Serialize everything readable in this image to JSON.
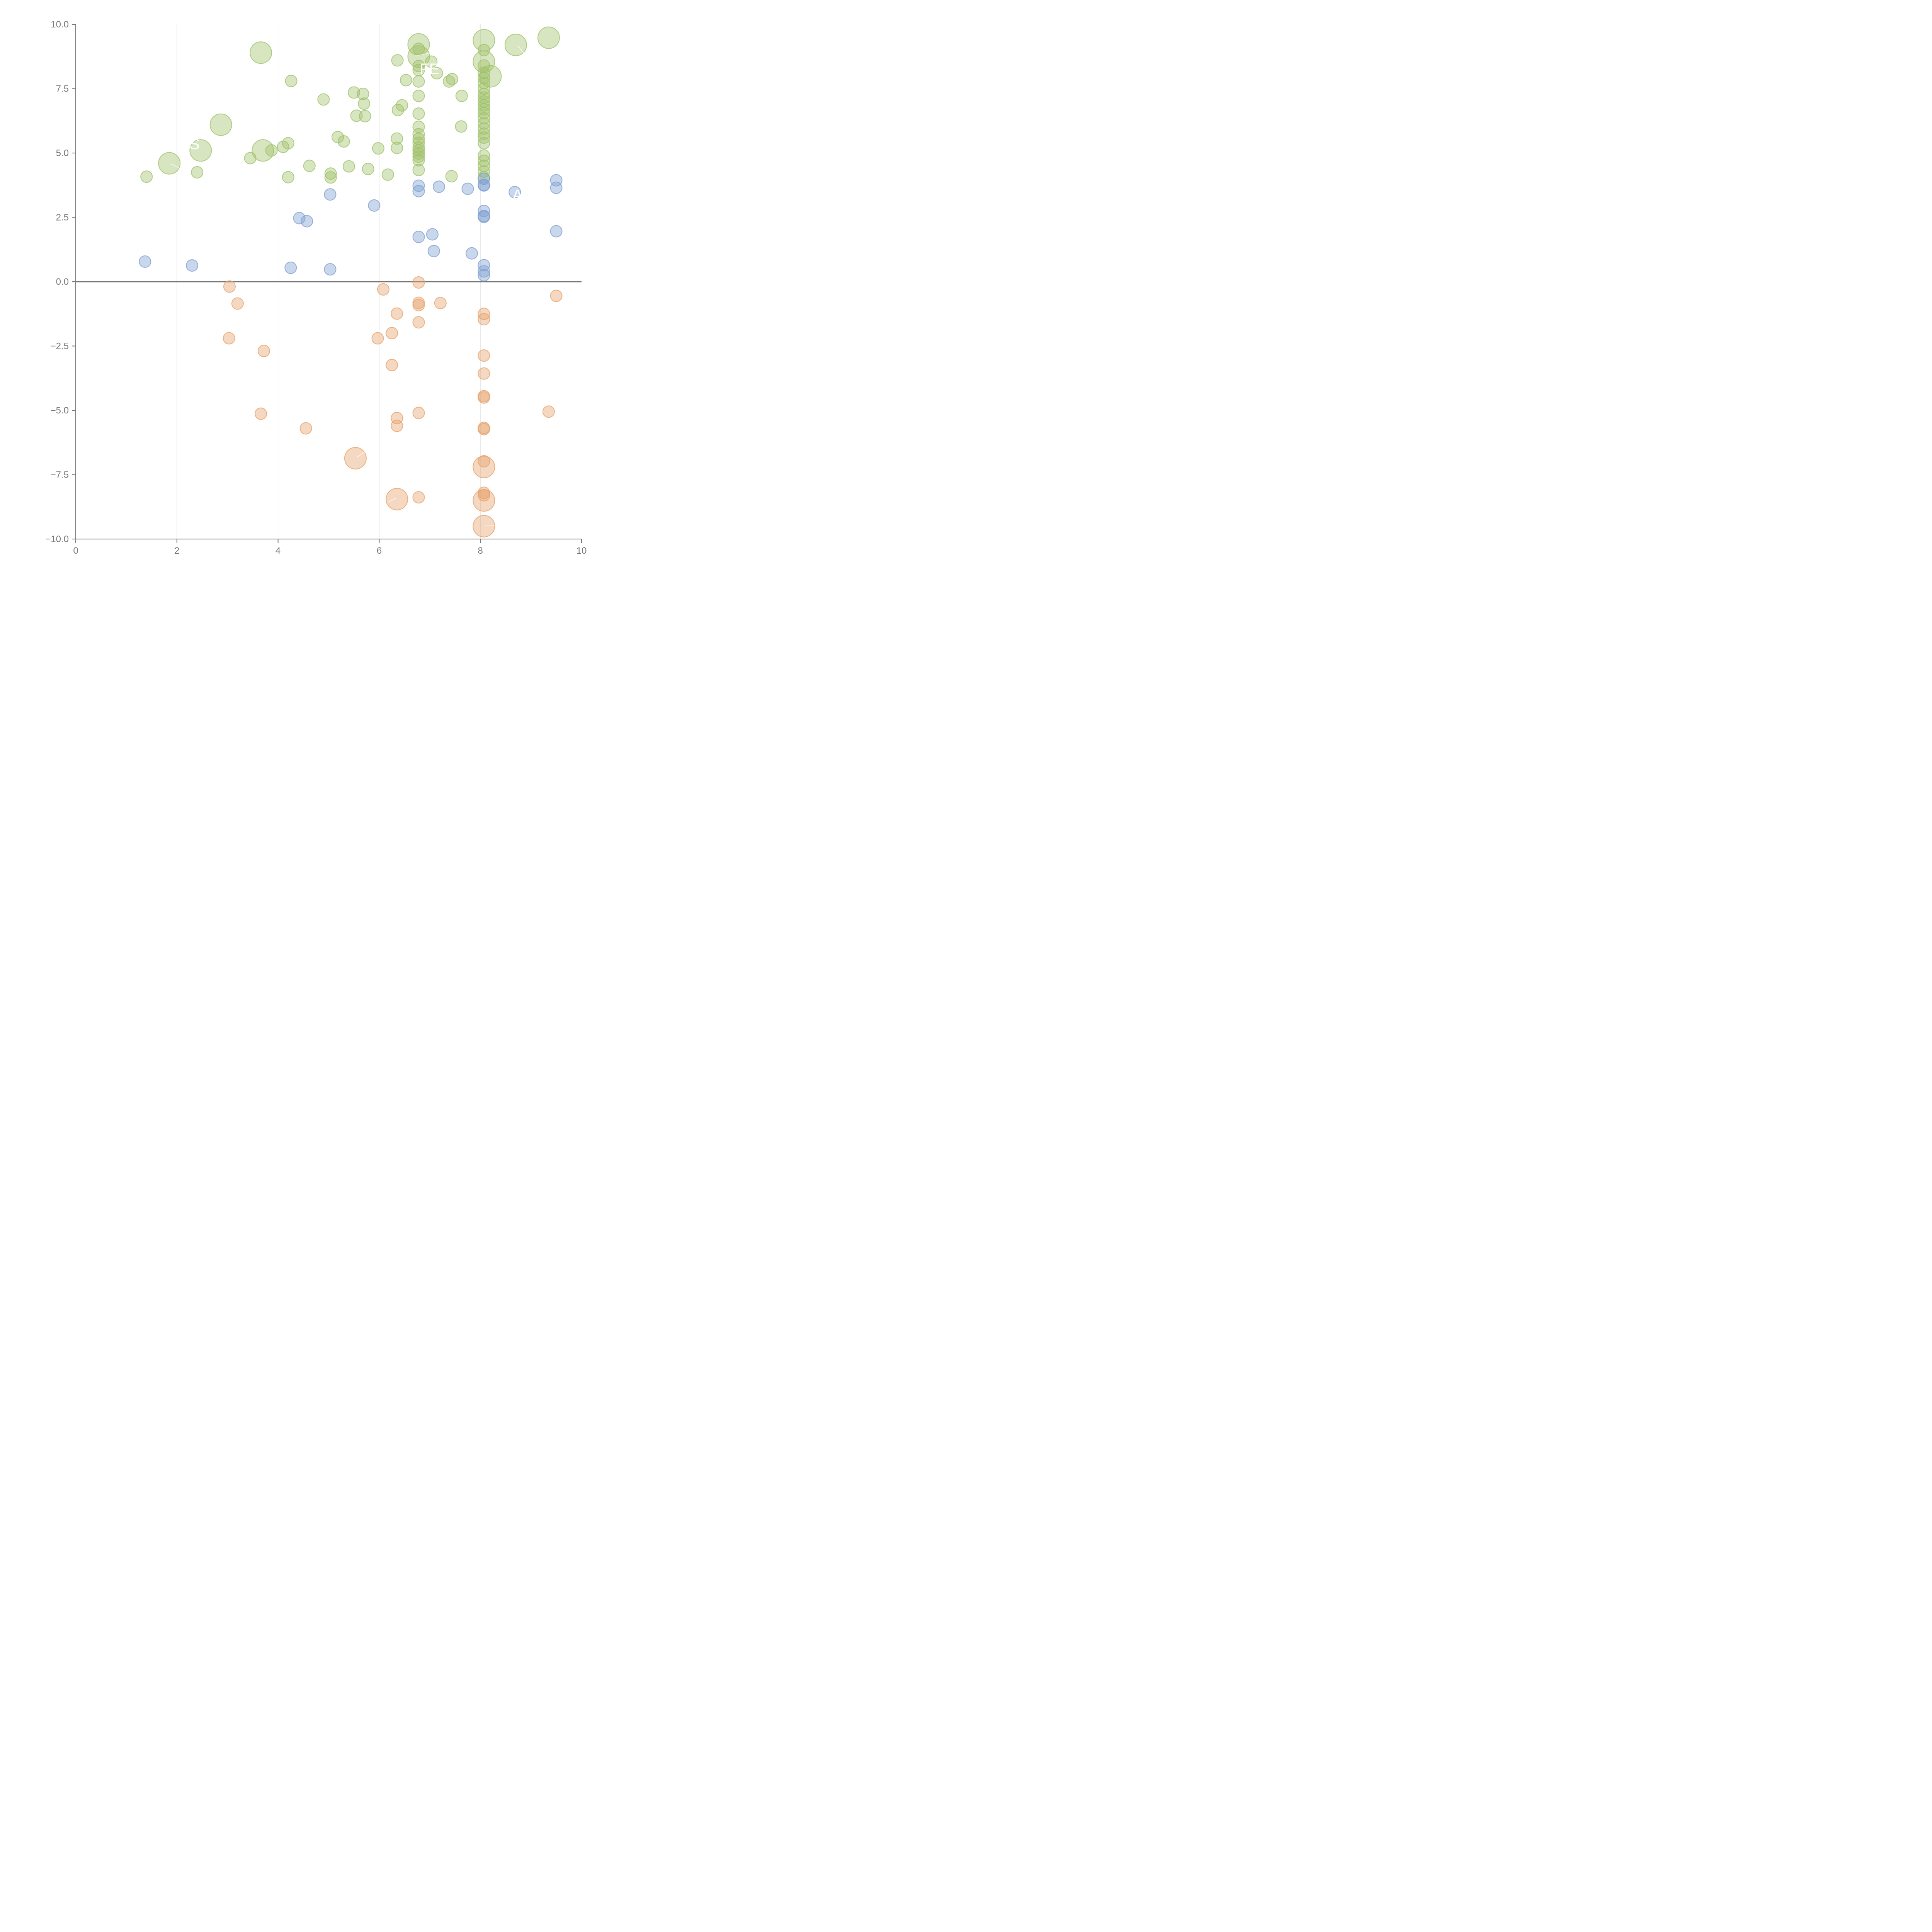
{
  "colors": {
    "positive": "#9fc16a",
    "moderate": "#7ea0d1",
    "negative": "#e6a26c",
    "axis": "#777777",
    "grid": "#dddddd",
    "zero_line": "#777777",
    "annotation": "#ffffff"
  },
  "chart_data": {
    "type": "scatter",
    "title": "",
    "xlabel": "",
    "ylabel": "",
    "xlim": [
      0,
      10
    ],
    "ylim": [
      -10,
      10
    ],
    "grid": "vertical lines at x = 2, 4, 6, 8",
    "zero_line": true,
    "legend": "none",
    "x_ticks": [
      "0",
      "2",
      "4",
      "6",
      "8",
      "10"
    ],
    "y_ticks": [
      "10.0",
      "7.5",
      "5.0",
      "2.5",
      "0.0",
      "−2.5",
      "−5.0",
      "−7.5",
      "−10.0"
    ],
    "series": [
      {
        "color": "#9fc16a",
        "points": [
          [
            1.4,
            4.08,
            1
          ],
          [
            1.85,
            4.6,
            3
          ],
          [
            2.4,
            4.25,
            1
          ],
          [
            2.47,
            5.1,
            3
          ],
          [
            2.87,
            6.1,
            3
          ],
          [
            3.45,
            4.8,
            1
          ],
          [
            3.66,
            8.9,
            3
          ],
          [
            3.7,
            5.1,
            3
          ],
          [
            3.87,
            5.1,
            1
          ],
          [
            4.1,
            5.24,
            1
          ],
          [
            4.2,
            5.38,
            1
          ],
          [
            4.2,
            4.06,
            1
          ],
          [
            4.26,
            7.8,
            1
          ],
          [
            4.62,
            4.5,
            1
          ],
          [
            4.9,
            7.08,
            1
          ],
          [
            5.04,
            4.2,
            1
          ],
          [
            5.04,
            4.05,
            1
          ],
          [
            5.18,
            5.62,
            1
          ],
          [
            5.3,
            5.45,
            1
          ],
          [
            5.4,
            4.48,
            1
          ],
          [
            5.5,
            7.35,
            1
          ],
          [
            5.55,
            6.45,
            1
          ],
          [
            5.68,
            7.3,
            1
          ],
          [
            5.7,
            6.92,
            1
          ],
          [
            5.72,
            6.43,
            1
          ],
          [
            5.78,
            4.38,
            1
          ],
          [
            5.98,
            5.18,
            1
          ],
          [
            6.17,
            4.16,
            1
          ],
          [
            6.35,
            5.2,
            1
          ],
          [
            6.35,
            5.56,
            1
          ],
          [
            6.36,
            8.6,
            1
          ],
          [
            6.37,
            6.67,
            1
          ],
          [
            6.45,
            6.85,
            1
          ],
          [
            6.53,
            7.83,
            1
          ],
          [
            6.78,
            4.34,
            1
          ],
          [
            6.78,
            4.72,
            1
          ],
          [
            6.78,
            4.86,
            1
          ],
          [
            6.78,
            4.98,
            1
          ],
          [
            6.78,
            5.1,
            1
          ],
          [
            6.78,
            5.22,
            1
          ],
          [
            6.78,
            5.4,
            1
          ],
          [
            6.78,
            5.55,
            1
          ],
          [
            6.78,
            5.73,
            1
          ],
          [
            6.78,
            6.02,
            1
          ],
          [
            6.78,
            6.53,
            1
          ],
          [
            6.78,
            7.22,
            1
          ],
          [
            6.78,
            7.78,
            1
          ],
          [
            6.78,
            8.22,
            1
          ],
          [
            6.78,
            8.38,
            1
          ],
          [
            6.78,
            8.75,
            3
          ],
          [
            6.78,
            9.05,
            1
          ],
          [
            6.78,
            9.22,
            3
          ],
          [
            7.03,
            8.55,
            1
          ],
          [
            7.14,
            8.1,
            1
          ],
          [
            7.38,
            7.78,
            1
          ],
          [
            7.44,
            7.87,
            1
          ],
          [
            7.43,
            4.1,
            1
          ],
          [
            7.62,
            6.03,
            1
          ],
          [
            7.63,
            7.22,
            1
          ],
          [
            8.07,
            4.05,
            1
          ],
          [
            8.07,
            4.28,
            1
          ],
          [
            8.07,
            4.5,
            1
          ],
          [
            8.07,
            4.7,
            1
          ],
          [
            8.07,
            4.9,
            1
          ],
          [
            8.07,
            5.38,
            1
          ],
          [
            8.07,
            5.6,
            1
          ],
          [
            8.07,
            5.75,
            1
          ],
          [
            8.07,
            5.95,
            1
          ],
          [
            8.07,
            6.15,
            1
          ],
          [
            8.07,
            6.35,
            1
          ],
          [
            8.07,
            6.55,
            1
          ],
          [
            8.07,
            6.7,
            1
          ],
          [
            8.07,
            6.85,
            1
          ],
          [
            8.07,
            7.0,
            1
          ],
          [
            8.07,
            7.15,
            1
          ],
          [
            8.07,
            7.3,
            1
          ],
          [
            8.07,
            7.5,
            1
          ],
          [
            8.07,
            7.72,
            1
          ],
          [
            8.07,
            7.92,
            1
          ],
          [
            8.07,
            8.12,
            1
          ],
          [
            8.07,
            8.4,
            1
          ],
          [
            8.07,
            8.55,
            3
          ],
          [
            8.07,
            9.0,
            1
          ],
          [
            8.07,
            9.38,
            3
          ],
          [
            8.2,
            7.98,
            3
          ],
          [
            8.7,
            9.2,
            3
          ],
          [
            9.35,
            9.48,
            3
          ]
        ]
      },
      {
        "color": "#7ea0d1",
        "points": [
          [
            1.37,
            0.78,
            1
          ],
          [
            2.3,
            0.63,
            1
          ],
          [
            4.25,
            0.54,
            1
          ],
          [
            4.42,
            2.47,
            1
          ],
          [
            4.57,
            2.35,
            1
          ],
          [
            5.03,
            0.48,
            1
          ],
          [
            5.03,
            3.39,
            1
          ],
          [
            5.9,
            2.96,
            1
          ],
          [
            6.78,
            1.74,
            1
          ],
          [
            6.78,
            3.52,
            1
          ],
          [
            6.78,
            3.73,
            1
          ],
          [
            7.05,
            1.84,
            1
          ],
          [
            7.08,
            1.19,
            1
          ],
          [
            7.18,
            3.69,
            1
          ],
          [
            7.75,
            3.61,
            1
          ],
          [
            7.83,
            1.1,
            1
          ],
          [
            8.07,
            0.25,
            1
          ],
          [
            8.07,
            0.4,
            1
          ],
          [
            8.07,
            0.64,
            1
          ],
          [
            8.07,
            2.52,
            1
          ],
          [
            8.07,
            2.55,
            1
          ],
          [
            8.07,
            2.75,
            1
          ],
          [
            8.07,
            3.74,
            1
          ],
          [
            8.07,
            3.76,
            1
          ],
          [
            8.07,
            4.0,
            1
          ],
          [
            8.68,
            3.48,
            1
          ],
          [
            9.5,
            1.96,
            1
          ],
          [
            9.5,
            3.65,
            1
          ],
          [
            9.5,
            3.94,
            1
          ]
        ]
      },
      {
        "color": "#e6a26c",
        "points": [
          [
            3.04,
            -0.19,
            1
          ],
          [
            3.2,
            -0.85,
            1
          ],
          [
            3.03,
            -2.2,
            1
          ],
          [
            3.72,
            -2.69,
            1
          ],
          [
            3.66,
            -5.13,
            1
          ],
          [
            4.55,
            -5.7,
            1
          ],
          [
            5.53,
            -6.86,
            3
          ],
          [
            5.97,
            -2.2,
            1
          ],
          [
            6.08,
            -0.3,
            1
          ],
          [
            6.25,
            -2.0,
            1
          ],
          [
            6.25,
            -3.24,
            1
          ],
          [
            6.35,
            -1.24,
            1
          ],
          [
            6.35,
            -5.3,
            1
          ],
          [
            6.35,
            -5.6,
            1
          ],
          [
            6.35,
            -8.45,
            3
          ],
          [
            6.78,
            -0.03,
            1
          ],
          [
            6.78,
            -0.82,
            1
          ],
          [
            6.78,
            -0.91,
            1
          ],
          [
            6.78,
            -1.58,
            1
          ],
          [
            6.78,
            -5.1,
            1
          ],
          [
            6.78,
            -8.38,
            1
          ],
          [
            7.21,
            -0.83,
            1
          ],
          [
            8.07,
            -1.25,
            1
          ],
          [
            8.07,
            -1.46,
            1
          ],
          [
            8.07,
            -2.87,
            1
          ],
          [
            8.07,
            -3.57,
            1
          ],
          [
            8.07,
            -4.45,
            1
          ],
          [
            8.07,
            -4.5,
            1
          ],
          [
            8.07,
            -5.68,
            1
          ],
          [
            8.07,
            -5.73,
            1
          ],
          [
            8.07,
            -6.98,
            1
          ],
          [
            8.07,
            -7.2,
            3
          ],
          [
            8.07,
            -8.2,
            1
          ],
          [
            8.07,
            -8.3,
            1
          ],
          [
            8.07,
            -8.5,
            3
          ],
          [
            8.07,
            -9.5,
            3
          ],
          [
            9.35,
            -5.05,
            1
          ],
          [
            9.5,
            -0.55,
            1
          ]
        ]
      }
    ],
    "annotations": [
      "S",
      "FE",
      "A"
    ]
  }
}
